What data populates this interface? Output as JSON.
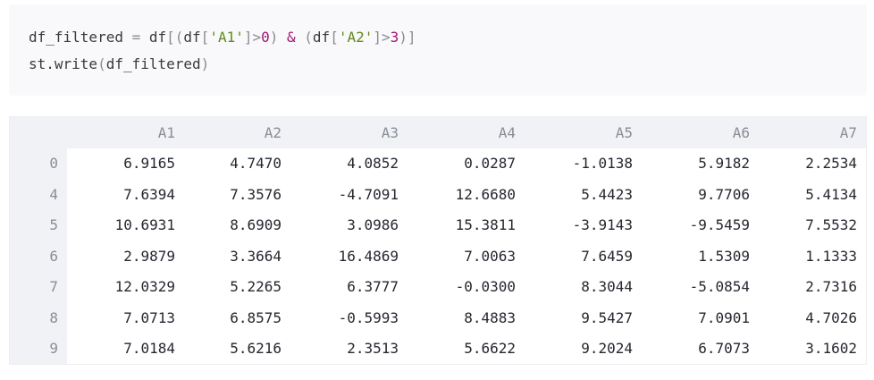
{
  "code": {
    "line1_tokens": [
      {
        "t": "df_filtered ",
        "c": ""
      },
      {
        "t": "=",
        "c": "tok-punct"
      },
      {
        "t": " df",
        "c": ""
      },
      {
        "t": "[(",
        "c": "tok-punct"
      },
      {
        "t": "df",
        "c": ""
      },
      {
        "t": "[",
        "c": "tok-punct"
      },
      {
        "t": "'A1'",
        "c": "tok-str"
      },
      {
        "t": "]>",
        "c": "tok-punct"
      },
      {
        "t": "0",
        "c": "tok-num"
      },
      {
        "t": ") ",
        "c": "tok-punct"
      },
      {
        "t": "&",
        "c": "tok-op"
      },
      {
        "t": " (",
        "c": "tok-punct"
      },
      {
        "t": "df",
        "c": ""
      },
      {
        "t": "[",
        "c": "tok-punct"
      },
      {
        "t": "'A2'",
        "c": "tok-str"
      },
      {
        "t": "]>",
        "c": "tok-punct"
      },
      {
        "t": "3",
        "c": "tok-num"
      },
      {
        "t": ")]",
        "c": "tok-punct"
      }
    ],
    "line2_tokens": [
      {
        "t": "st.write",
        "c": ""
      },
      {
        "t": "(",
        "c": "tok-punct"
      },
      {
        "t": "df_filtered",
        "c": ""
      },
      {
        "t": ")",
        "c": "tok-punct"
      }
    ]
  },
  "dataframe": {
    "columns": [
      "A1",
      "A2",
      "A3",
      "A4",
      "A5",
      "A6",
      "A7"
    ],
    "rows": [
      {
        "index": "0",
        "values": [
          "6.9165",
          "4.7470",
          "4.0852",
          "0.0287",
          "-1.0138",
          "5.9182",
          "2.2534"
        ]
      },
      {
        "index": "4",
        "values": [
          "7.6394",
          "7.3576",
          "-4.7091",
          "12.6680",
          "5.4423",
          "9.7706",
          "5.4134"
        ]
      },
      {
        "index": "5",
        "values": [
          "10.6931",
          "8.6909",
          "3.0986",
          "15.3811",
          "-3.9143",
          "-9.5459",
          "7.5532"
        ]
      },
      {
        "index": "6",
        "values": [
          "2.9879",
          "3.3664",
          "16.4869",
          "7.0063",
          "7.6459",
          "1.5309",
          "1.1333"
        ]
      },
      {
        "index": "7",
        "values": [
          "12.0329",
          "5.2265",
          "6.3777",
          "-0.0300",
          "8.3044",
          "-5.0854",
          "2.7316"
        ]
      },
      {
        "index": "8",
        "values": [
          "7.0713",
          "6.8575",
          "-0.5993",
          "8.4883",
          "9.5427",
          "7.0901",
          "4.7026"
        ]
      },
      {
        "index": "9",
        "values": [
          "7.0184",
          "5.6216",
          "2.3513",
          "5.6622",
          "9.2024",
          "6.7073",
          "3.1602"
        ]
      }
    ]
  }
}
